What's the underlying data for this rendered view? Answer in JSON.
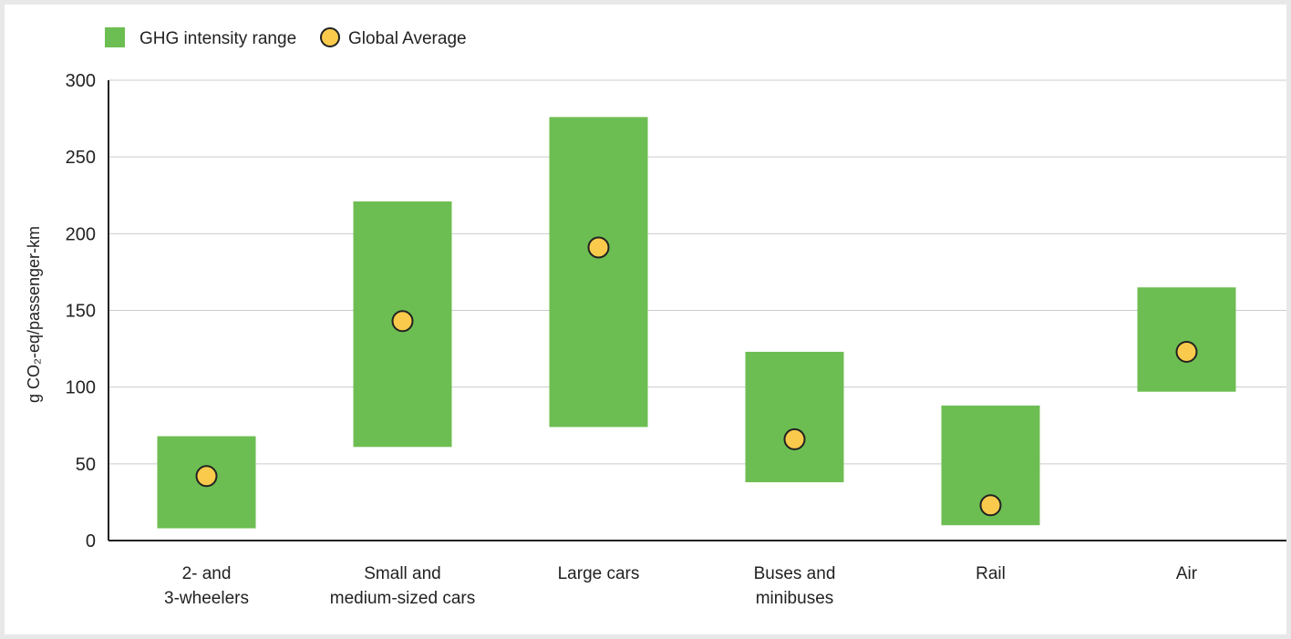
{
  "chart_data": {
    "type": "bar",
    "ylabel": "g CO₂-eq/passenger-km",
    "ylim": [
      0,
      300
    ],
    "yticks": [
      "0",
      "50",
      "100",
      "150",
      "200",
      "250",
      "300"
    ],
    "grid": true,
    "legend": {
      "placement": "top-left",
      "range_label": "GHG intensity range",
      "average_label": "Global Average"
    },
    "colors": {
      "range": "#6dbe52",
      "average": "#f9ca4c",
      "grid": "#cccccc"
    },
    "categories": [
      [
        "2- and",
        "3-wheelers"
      ],
      [
        "Small and",
        "medium-sized cars"
      ],
      [
        "Large cars"
      ],
      [
        "Buses and",
        "minibuses"
      ],
      [
        "Rail"
      ],
      [
        "Air"
      ]
    ],
    "series": [
      {
        "name": "GHG intensity range",
        "low": [
          8,
          61,
          74,
          38,
          10,
          97
        ],
        "high": [
          68,
          221,
          276,
          123,
          88,
          165
        ]
      },
      {
        "name": "Global Average",
        "values": [
          42,
          143,
          191,
          66,
          23,
          123
        ]
      }
    ]
  }
}
